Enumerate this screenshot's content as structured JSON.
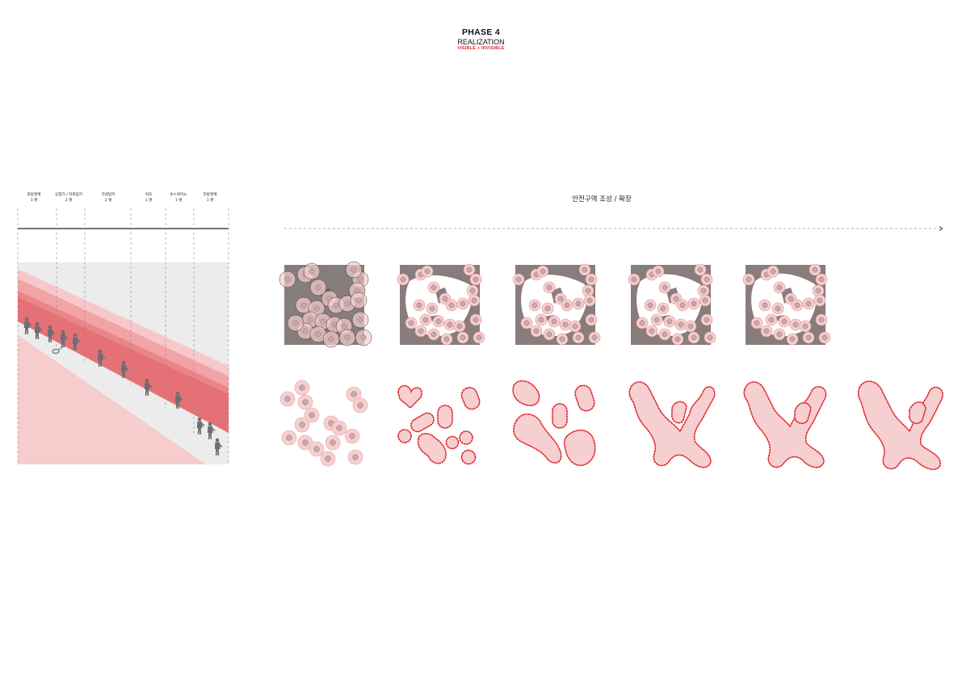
{
  "header": {
    "title": "PHASE 4",
    "subtitle": "REALIZATION",
    "tagline": "VISIBLE + INVISIBLE"
  },
  "roles": [
    {
      "name": "후방경계",
      "count": "1 명"
    },
    {
      "name": "공업가 / 지뢰탐지",
      "count": "2 명"
    },
    {
      "name": "지뢰탐지",
      "count": "2 명"
    },
    {
      "name": "위호",
      "count": "1 명"
    },
    {
      "name": "손스위이노",
      "count": "1 명"
    },
    {
      "name": "전방경계",
      "count": "1 명"
    }
  ],
  "flow": {
    "label": "안전구역 조성 / 확장"
  },
  "colors": {
    "accent_red": "#e0262b",
    "zone_pink": "#f6cfd0",
    "zone_dark": "#877d7c",
    "band_light": "#f5c6c8",
    "band_mid": "#ee9a9d",
    "band_dark": "#e8787c",
    "ground": "#ececec"
  }
}
